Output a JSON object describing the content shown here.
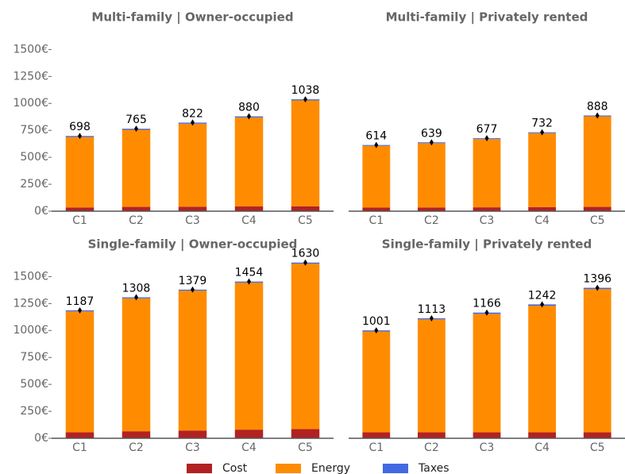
{
  "chart_data": [
    {
      "type": "bar",
      "stacked": true,
      "title": "Multi-family | Owner-occupied",
      "categories": [
        "C1",
        "C2",
        "C3",
        "C4",
        "C5"
      ],
      "series": [
        {
          "name": "Cost",
          "color": "#b22222",
          "values": [
            35,
            40,
            42,
            44,
            45
          ]
        },
        {
          "name": "Energy",
          "color": "#ff8c00",
          "values": [
            653,
            715,
            770,
            826,
            983
          ]
        },
        {
          "name": "Taxes",
          "color": "#4169e1",
          "values": [
            10,
            10,
            10,
            10,
            10
          ]
        }
      ],
      "totals": [
        698,
        765,
        822,
        880,
        1038
      ],
      "ylim": [
        0,
        1650
      ],
      "yticks": [
        {
          "value": 0,
          "label": "0€"
        },
        {
          "value": 250,
          "label": "250€"
        },
        {
          "value": 500,
          "label": "500€"
        },
        {
          "value": 750,
          "label": "750€"
        },
        {
          "value": 1000,
          "label": "1000€"
        },
        {
          "value": 1250,
          "label": "1250€"
        },
        {
          "value": 1500,
          "label": "1500€"
        }
      ]
    },
    {
      "type": "bar",
      "stacked": true,
      "title": "Multi-family | Privately rented",
      "categories": [
        "C1",
        "C2",
        "C3",
        "C4",
        "C5"
      ],
      "series": [
        {
          "name": "Cost",
          "color": "#b22222",
          "values": [
            33,
            35,
            36,
            38,
            40
          ]
        },
        {
          "name": "Energy",
          "color": "#ff8c00",
          "values": [
            573,
            596,
            633,
            686,
            840
          ]
        },
        {
          "name": "Taxes",
          "color": "#4169e1",
          "values": [
            8,
            8,
            8,
            8,
            8
          ]
        }
      ],
      "totals": [
        614,
        639,
        677,
        732,
        888
      ],
      "ylim": [
        0,
        1650
      ]
    },
    {
      "type": "bar",
      "stacked": true,
      "title": "Single-family | Owner-occupied",
      "categories": [
        "C1",
        "C2",
        "C3",
        "C4",
        "C5"
      ],
      "series": [
        {
          "name": "Cost",
          "color": "#b22222",
          "values": [
            55,
            65,
            72,
            80,
            85
          ]
        },
        {
          "name": "Energy",
          "color": "#ff8c00",
          "values": [
            1122,
            1233,
            1297,
            1364,
            1535
          ]
        },
        {
          "name": "Taxes",
          "color": "#4169e1",
          "values": [
            10,
            10,
            10,
            10,
            10
          ]
        }
      ],
      "totals": [
        1187,
        1308,
        1379,
        1454,
        1630
      ],
      "ylim": [
        0,
        1650
      ],
      "yticks": [
        {
          "value": 0,
          "label": "0€"
        },
        {
          "value": 250,
          "label": "250€"
        },
        {
          "value": 500,
          "label": "500€"
        },
        {
          "value": 750,
          "label": "750€"
        },
        {
          "value": 1000,
          "label": "1000€"
        },
        {
          "value": 1250,
          "label": "1250€"
        },
        {
          "value": 1500,
          "label": "1500€"
        }
      ]
    },
    {
      "type": "bar",
      "stacked": true,
      "title": "Single-family | Privately rented",
      "categories": [
        "C1",
        "C2",
        "C3",
        "C4",
        "C5"
      ],
      "series": [
        {
          "name": "Cost",
          "color": "#b22222",
          "values": [
            55,
            55,
            55,
            55,
            55
          ]
        },
        {
          "name": "Energy",
          "color": "#ff8c00",
          "values": [
            936,
            1048,
            1099,
            1175,
            1329
          ]
        },
        {
          "name": "Taxes",
          "color": "#4169e1",
          "values": [
            10,
            10,
            12,
            12,
            12
          ]
        }
      ],
      "totals": [
        1001,
        1113,
        1166,
        1242,
        1396
      ],
      "ylim": [
        0,
        1650
      ]
    }
  ]
}
